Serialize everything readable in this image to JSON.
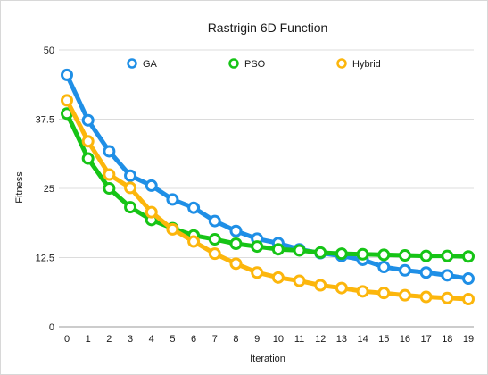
{
  "chart_data": {
    "type": "line",
    "title": "Rastrigin 6D Function",
    "xlabel": "Iteration",
    "ylabel": "Fitness",
    "x": [
      0,
      1,
      2,
      3,
      4,
      5,
      6,
      7,
      8,
      9,
      10,
      11,
      12,
      13,
      14,
      15,
      16,
      17,
      18,
      19
    ],
    "xlim": [
      0,
      19
    ],
    "ylim": [
      0,
      50
    ],
    "y_ticks": [
      0,
      12.5,
      25,
      37.5,
      50
    ],
    "y_tick_labels": [
      "0",
      "12.5",
      "25",
      "37.5",
      "50"
    ],
    "grid": "horizontal",
    "legend_position": "top",
    "series": [
      {
        "name": "GA",
        "color": "#1f8fe6",
        "values": [
          45.5,
          37.3,
          31.7,
          27.3,
          25.5,
          23.0,
          21.5,
          19.1,
          17.3,
          15.9,
          15.1,
          14.0,
          13.3,
          12.8,
          12.1,
          10.8,
          10.2,
          9.8,
          9.3,
          8.7
        ]
      },
      {
        "name": "PSO",
        "color": "#16c416",
        "values": [
          38.5,
          30.4,
          25.0,
          21.6,
          19.3,
          17.8,
          16.5,
          15.8,
          15.0,
          14.5,
          14.0,
          13.8,
          13.4,
          13.2,
          13.1,
          13.0,
          12.9,
          12.8,
          12.8,
          12.7
        ]
      },
      {
        "name": "Hybrid",
        "color": "#fcb60c",
        "values": [
          40.9,
          33.5,
          27.5,
          25.1,
          20.7,
          17.6,
          15.4,
          13.2,
          11.4,
          9.8,
          8.9,
          8.3,
          7.5,
          7.0,
          6.4,
          6.1,
          5.7,
          5.4,
          5.2,
          5.0
        ]
      }
    ]
  }
}
